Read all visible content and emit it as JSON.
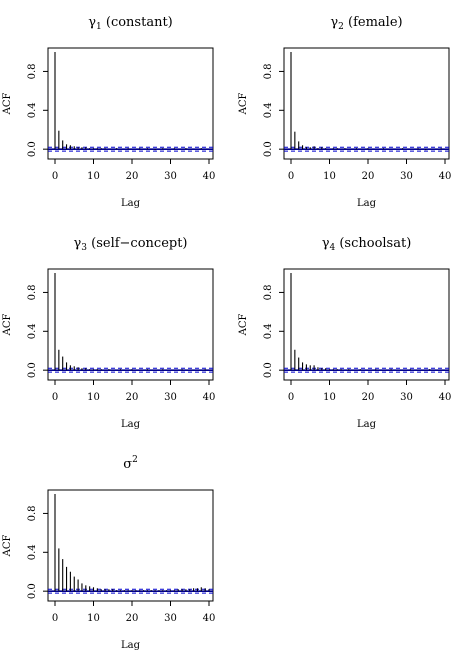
{
  "figure": {
    "panels": [
      {
        "title_prefix": "γ",
        "title_sub": "1",
        "title_suffix": " (constant)",
        "xlabel": "Lag",
        "ylabel": "ACF"
      },
      {
        "title_prefix": "γ",
        "title_sub": "2",
        "title_suffix": " (female)",
        "xlabel": "Lag",
        "ylabel": "ACF"
      },
      {
        "title_prefix": "γ",
        "title_sub": "3",
        "title_suffix": " (self−concept)",
        "xlabel": "Lag",
        "ylabel": "ACF"
      },
      {
        "title_prefix": "γ",
        "title_sub": "4",
        "title_suffix": " (schoolsat)",
        "xlabel": "Lag",
        "ylabel": "ACF"
      },
      {
        "title_prefix": "σ",
        "title_sup": "2",
        "title_suffix": "",
        "xlabel": "Lag",
        "ylabel": "ACF"
      }
    ]
  },
  "colors": {
    "bars": "#000000",
    "zero_line": "#00008b",
    "ci_line": "#0000cd",
    "axes": "#000000"
  },
  "chart_data": [
    {
      "type": "bar",
      "title": "γ1 (constant)",
      "xlabel": "Lag",
      "ylabel": "ACF",
      "xlim": [
        0,
        40
      ],
      "ylim": [
        -0.06,
        1.0
      ],
      "xticks": [
        0,
        10,
        20,
        30,
        40
      ],
      "yticks": [
        "0.0",
        "0.4",
        "0.8"
      ],
      "ci": 0.02,
      "x": [
        0,
        1,
        2,
        3,
        4,
        5,
        6,
        7,
        8,
        9,
        10,
        11,
        12,
        13,
        14,
        15,
        16,
        17,
        18,
        19,
        20,
        21,
        22,
        23,
        24,
        25,
        26,
        27,
        28,
        29,
        30,
        31,
        32,
        33,
        34,
        35,
        36,
        37,
        38,
        39,
        40
      ],
      "values": [
        1.0,
        0.19,
        0.09,
        0.05,
        0.04,
        0.03,
        0.02,
        0.02,
        0.02,
        0.01,
        0.01,
        0.01,
        0.01,
        0.01,
        0.0,
        0.0,
        0.01,
        0.0,
        0.0,
        0.01,
        0.0,
        0.0,
        0.01,
        0.0,
        0.01,
        0.0,
        -0.01,
        0.0,
        0.01,
        0.0,
        0.0,
        0.01,
        0.0,
        0.0,
        0.01,
        0.0,
        0.0,
        0.0,
        0.01,
        0.0,
        0.0
      ]
    },
    {
      "type": "bar",
      "title": "γ2 (female)",
      "xlabel": "Lag",
      "ylabel": "ACF",
      "xlim": [
        0,
        40
      ],
      "ylim": [
        -0.06,
        1.0
      ],
      "xticks": [
        0,
        10,
        20,
        30,
        40
      ],
      "yticks": [
        "0.0",
        "0.4",
        "0.8"
      ],
      "ci": 0.02,
      "x": [
        0,
        1,
        2,
        3,
        4,
        5,
        6,
        7,
        8,
        9,
        10,
        11,
        12,
        13,
        14,
        15,
        16,
        17,
        18,
        19,
        20,
        21,
        22,
        23,
        24,
        25,
        26,
        27,
        28,
        29,
        30,
        31,
        32,
        33,
        34,
        35,
        36,
        37,
        38,
        39,
        40
      ],
      "values": [
        1.0,
        0.18,
        0.08,
        0.04,
        0.02,
        0.02,
        0.03,
        0.01,
        0.02,
        0.01,
        0.0,
        0.01,
        0.01,
        0.0,
        0.01,
        0.0,
        0.0,
        0.01,
        0.0,
        0.0,
        0.01,
        0.0,
        0.0,
        0.0,
        0.01,
        0.0,
        0.0,
        0.0,
        0.0,
        0.01,
        0.0,
        0.0,
        0.0,
        0.01,
        0.0,
        -0.01,
        0.0,
        0.0,
        0.0,
        0.01,
        0.0
      ]
    },
    {
      "type": "bar",
      "title": "γ3 (self−concept)",
      "xlabel": "Lag",
      "ylabel": "ACF",
      "xlim": [
        0,
        40
      ],
      "ylim": [
        -0.06,
        1.0
      ],
      "xticks": [
        0,
        10,
        20,
        30,
        40
      ],
      "yticks": [
        "0.0",
        "0.4",
        "0.8"
      ],
      "ci": 0.02,
      "x": [
        0,
        1,
        2,
        3,
        4,
        5,
        6,
        7,
        8,
        9,
        10,
        11,
        12,
        13,
        14,
        15,
        16,
        17,
        18,
        19,
        20,
        21,
        22,
        23,
        24,
        25,
        26,
        27,
        28,
        29,
        30,
        31,
        32,
        33,
        34,
        35,
        36,
        37,
        38,
        39,
        40
      ],
      "values": [
        1.0,
        0.21,
        0.14,
        0.08,
        0.05,
        0.04,
        0.03,
        0.02,
        0.02,
        0.01,
        0.01,
        0.01,
        0.01,
        0.0,
        0.01,
        0.0,
        0.0,
        0.01,
        0.0,
        0.0,
        0.01,
        0.0,
        0.0,
        0.0,
        0.01,
        0.0,
        0.0,
        0.0,
        0.01,
        0.0,
        0.0,
        0.0,
        0.0,
        0.01,
        0.0,
        0.0,
        0.0,
        0.0,
        0.0,
        0.01,
        0.0
      ]
    },
    {
      "type": "bar",
      "title": "γ4 (schoolsat)",
      "xlabel": "Lag",
      "ylabel": "ACF",
      "xlim": [
        0,
        40
      ],
      "ylim": [
        -0.06,
        1.0
      ],
      "xticks": [
        0,
        10,
        20,
        30,
        40
      ],
      "yticks": [
        "0.0",
        "0.4",
        "0.8"
      ],
      "ci": 0.02,
      "x": [
        0,
        1,
        2,
        3,
        4,
        5,
        6,
        7,
        8,
        9,
        10,
        11,
        12,
        13,
        14,
        15,
        16,
        17,
        18,
        19,
        20,
        21,
        22,
        23,
        24,
        25,
        26,
        27,
        28,
        29,
        30,
        31,
        32,
        33,
        34,
        35,
        36,
        37,
        38,
        39,
        40
      ],
      "values": [
        1.0,
        0.21,
        0.13,
        0.08,
        0.06,
        0.05,
        0.05,
        0.03,
        0.02,
        0.02,
        0.01,
        0.01,
        0.01,
        0.01,
        0.0,
        0.01,
        0.0,
        0.0,
        0.01,
        0.0,
        0.0,
        0.0,
        0.01,
        0.0,
        0.0,
        0.0,
        0.01,
        0.0,
        0.0,
        0.0,
        0.0,
        0.01,
        0.0,
        0.0,
        0.0,
        0.0,
        0.01,
        0.0,
        0.0,
        0.0,
        0.0
      ]
    },
    {
      "type": "bar",
      "title": "σ2",
      "xlabel": "Lag",
      "ylabel": "ACF",
      "xlim": [
        0,
        40
      ],
      "ylim": [
        -0.06,
        1.0
      ],
      "xticks": [
        0,
        10,
        20,
        30,
        40
      ],
      "yticks": [
        "0.0",
        "0.4",
        "0.8"
      ],
      "ci": 0.02,
      "x": [
        0,
        1,
        2,
        3,
        4,
        5,
        6,
        7,
        8,
        9,
        10,
        11,
        12,
        13,
        14,
        15,
        16,
        17,
        18,
        19,
        20,
        21,
        22,
        23,
        24,
        25,
        26,
        27,
        28,
        29,
        30,
        31,
        32,
        33,
        34,
        35,
        36,
        37,
        38,
        39,
        40
      ],
      "values": [
        1.0,
        0.44,
        0.33,
        0.25,
        0.2,
        0.15,
        0.12,
        0.08,
        0.06,
        0.05,
        0.04,
        0.03,
        0.02,
        0.02,
        0.02,
        0.02,
        0.01,
        0.01,
        0.01,
        0.01,
        0.01,
        0.01,
        0.01,
        0.01,
        0.01,
        0.01,
        0.01,
        0.01,
        0.01,
        0.01,
        0.01,
        0.01,
        0.02,
        0.02,
        0.02,
        0.02,
        0.03,
        0.03,
        0.04,
        0.03,
        0.02
      ]
    }
  ]
}
